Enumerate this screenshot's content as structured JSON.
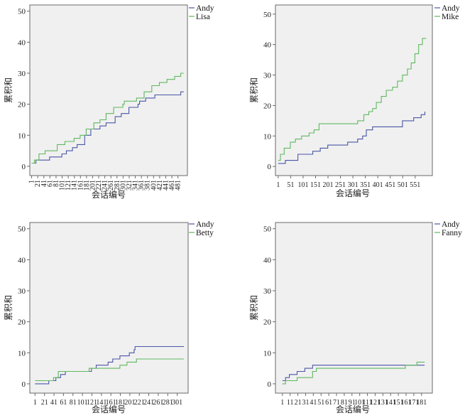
{
  "colors": {
    "plot_bg": "#f0f0f0",
    "andy": "#4a56a6",
    "other": "#5fb85f",
    "axis": "#6a6a6a"
  },
  "chart_data": [
    {
      "type": "line",
      "xlabel": "会话编号",
      "ylabel": "累积和",
      "ylim": [
        -3,
        52
      ],
      "yticks": [
        0,
        10,
        20,
        30,
        40,
        50
      ],
      "xlim": [
        -5,
        512
      ],
      "xticks": [
        1,
        21,
        41,
        61,
        81,
        101,
        121,
        141,
        161,
        181,
        201,
        221,
        241,
        261,
        281,
        301,
        321,
        341,
        361,
        381,
        401,
        421,
        441,
        461,
        481
      ],
      "xtick_rotate": true,
      "legend_position": "top-right",
      "series": [
        {
          "name": "Andy",
          "points": [
            [
              1,
              1
            ],
            [
              15,
              2
            ],
            [
              60,
              3
            ],
            [
              100,
              4
            ],
            [
              115,
              5
            ],
            [
              135,
              6
            ],
            [
              150,
              7
            ],
            [
              175,
              10
            ],
            [
              195,
              12
            ],
            [
              225,
              13
            ],
            [
              245,
              14
            ],
            [
              275,
              16
            ],
            [
              295,
              17
            ],
            [
              320,
              19
            ],
            [
              350,
              20
            ],
            [
              355,
              21
            ],
            [
              375,
              22
            ],
            [
              405,
              23
            ],
            [
              490,
              24
            ],
            [
              500,
              24
            ]
          ]
        },
        {
          "name": "Lisa",
          "points": [
            [
              1,
              1
            ],
            [
              10,
              2
            ],
            [
              25,
              4
            ],
            [
              45,
              5
            ],
            [
              85,
              7
            ],
            [
              110,
              8
            ],
            [
              140,
              9
            ],
            [
              160,
              10
            ],
            [
              180,
              12
            ],
            [
              205,
              14
            ],
            [
              225,
              15
            ],
            [
              245,
              17
            ],
            [
              270,
              19
            ],
            [
              300,
              20
            ],
            [
              305,
              21
            ],
            [
              345,
              22
            ],
            [
              370,
              24
            ],
            [
              395,
              26
            ],
            [
              420,
              27
            ],
            [
              445,
              28
            ],
            [
              470,
              29
            ],
            [
              490,
              30
            ],
            [
              500,
              30
            ]
          ]
        }
      ]
    },
    {
      "type": "line",
      "xlabel": "会话编号",
      "ylabel": "累积和",
      "ylim": [
        -3,
        53
      ],
      "yticks": [
        0,
        10,
        20,
        30,
        40,
        50
      ],
      "xlim": [
        -10,
        620
      ],
      "xticks": [
        1,
        51,
        101,
        151,
        201,
        251,
        301,
        351,
        401,
        451,
        501,
        551
      ],
      "xtick_rotate": false,
      "legend_position": "top-right",
      "series": [
        {
          "name": "Andy",
          "points": [
            [
              1,
              1
            ],
            [
              30,
              2
            ],
            [
              80,
              4
            ],
            [
              140,
              5
            ],
            [
              170,
              6
            ],
            [
              200,
              7
            ],
            [
              250,
              7
            ],
            [
              280,
              8
            ],
            [
              320,
              9
            ],
            [
              340,
              10
            ],
            [
              355,
              12
            ],
            [
              380,
              13
            ],
            [
              480,
              13
            ],
            [
              500,
              15
            ],
            [
              545,
              16
            ],
            [
              575,
              17
            ],
            [
              590,
              18
            ]
          ]
        },
        {
          "name": "Mike",
          "points": [
            [
              1,
              2
            ],
            [
              10,
              4
            ],
            [
              25,
              6
            ],
            [
              50,
              8
            ],
            [
              70,
              9
            ],
            [
              95,
              10
            ],
            [
              125,
              11
            ],
            [
              145,
              12
            ],
            [
              165,
              14
            ],
            [
              300,
              14
            ],
            [
              320,
              15
            ],
            [
              345,
              17
            ],
            [
              365,
              18
            ],
            [
              380,
              19
            ],
            [
              395,
              21
            ],
            [
              415,
              23
            ],
            [
              435,
              25
            ],
            [
              460,
              26
            ],
            [
              480,
              28
            ],
            [
              500,
              30
            ],
            [
              520,
              32
            ],
            [
              535,
              34
            ],
            [
              550,
              37
            ],
            [
              565,
              40
            ],
            [
              580,
              42
            ],
            [
              595,
              42
            ]
          ]
        }
      ]
    },
    {
      "type": "line",
      "xlabel": "会话编号",
      "ylabel": "累积和",
      "ylim": [
        -3,
        52
      ],
      "yticks": [
        0,
        10,
        20,
        30,
        40,
        50
      ],
      "xlim": [
        -10,
        324
      ],
      "xticks": [
        1,
        21,
        41,
        61,
        81,
        101,
        121,
        141,
        161,
        181,
        201,
        221,
        241,
        261,
        281,
        301
      ],
      "xtick_rotate": false,
      "legend_position": "top-right",
      "series": [
        {
          "name": "Andy",
          "points": [
            [
              1,
              0
            ],
            [
              30,
              1
            ],
            [
              45,
              2
            ],
            [
              55,
              3
            ],
            [
              65,
              4
            ],
            [
              120,
              5
            ],
            [
              130,
              6
            ],
            [
              155,
              7
            ],
            [
              165,
              8
            ],
            [
              180,
              9
            ],
            [
              200,
              10
            ],
            [
              210,
              11
            ],
            [
              212,
              12
            ],
            [
              315,
              12
            ]
          ]
        },
        {
          "name": "Betty",
          "points": [
            [
              1,
              1
            ],
            [
              40,
              2
            ],
            [
              50,
              4
            ],
            [
              115,
              5
            ],
            [
              180,
              6
            ],
            [
              195,
              7
            ],
            [
              215,
              8
            ],
            [
              315,
              8
            ]
          ]
        }
      ]
    },
    {
      "type": "line",
      "xlabel": "会话编号",
      "ylabel": "累积和",
      "ylim": [
        -3,
        52
      ],
      "yticks": [
        0,
        10,
        20,
        30,
        40,
        50
      ],
      "xlim": [
        -8,
        195
      ],
      "xticks": [
        1,
        11,
        21,
        31,
        41,
        51,
        61,
        71,
        81,
        91,
        101,
        111,
        121,
        131,
        141,
        151,
        161,
        171,
        181
      ],
      "xtick_rotate": false,
      "legend_position": "top-right",
      "series": [
        {
          "name": "Andy",
          "points": [
            [
              1,
              1
            ],
            [
              5,
              2
            ],
            [
              10,
              3
            ],
            [
              20,
              4
            ],
            [
              30,
              5
            ],
            [
              40,
              6
            ],
            [
              185,
              6
            ]
          ]
        },
        {
          "name": "Fanny",
          "points": [
            [
              1,
              0
            ],
            [
              5,
              1
            ],
            [
              20,
              2
            ],
            [
              40,
              4
            ],
            [
              45,
              5
            ],
            [
              155,
              5
            ],
            [
              160,
              6
            ],
            [
              175,
              7
            ],
            [
              185,
              7
            ]
          ]
        }
      ]
    }
  ]
}
